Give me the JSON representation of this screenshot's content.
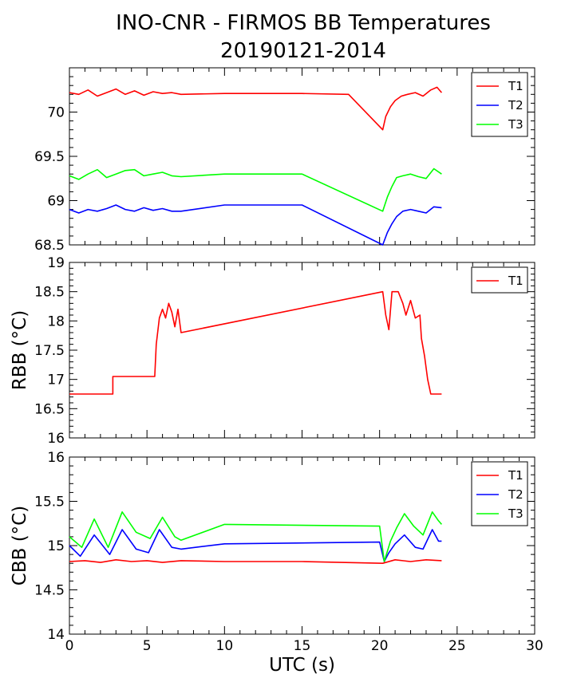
{
  "title": {
    "line1": "INO-CNR - FIRMOS BB Temperatures",
    "line2": "20190121-2014"
  },
  "colors": {
    "T1": "#ff0000",
    "T2": "#0000ff",
    "T3": "#00ff00",
    "axes": "#000000"
  },
  "chart_data": [
    {
      "type": "line",
      "panel": "top",
      "ylabel": "",
      "xlim": [
        0,
        30
      ],
      "ylim": [
        68.5,
        70.5
      ],
      "xticks": [
        0,
        5,
        10,
        15,
        20,
        25,
        30
      ],
      "yticks": [
        68.5,
        69,
        69.5,
        70
      ],
      "ytick_labels": [
        "68.5",
        "69",
        "69.5",
        "70"
      ],
      "show_xtick_labels": false,
      "legend": {
        "placement": "top-right",
        "entries": [
          "T1",
          "T2",
          "T3"
        ]
      },
      "series": [
        {
          "name": "T1",
          "x": [
            0,
            0.6,
            1.2,
            1.8,
            2.4,
            3,
            3.6,
            4.2,
            4.8,
            5.4,
            6,
            6.6,
            7.2,
            10,
            15,
            18,
            20.2,
            20.4,
            20.7,
            21,
            21.4,
            21.8,
            22.3,
            22.8,
            23.3,
            23.7,
            24
          ],
          "values": [
            70.22,
            70.2,
            70.25,
            70.18,
            70.22,
            70.26,
            70.2,
            70.24,
            70.19,
            70.23,
            70.21,
            70.22,
            70.2,
            70.21,
            70.21,
            70.2,
            69.8,
            69.95,
            70.06,
            70.13,
            70.18,
            70.2,
            70.22,
            70.18,
            70.25,
            70.28,
            70.22
          ]
        },
        {
          "name": "T2",
          "x": [
            0,
            0.6,
            1.2,
            1.8,
            2.4,
            3,
            3.6,
            4.2,
            4.8,
            5.4,
            6,
            6.6,
            7.2,
            10,
            15,
            20.2,
            20.5,
            20.8,
            21.1,
            21.5,
            22,
            22.5,
            23,
            23.5,
            24
          ],
          "values": [
            68.9,
            68.86,
            68.9,
            68.88,
            68.91,
            68.95,
            68.9,
            68.88,
            68.92,
            68.89,
            68.91,
            68.88,
            68.88,
            68.95,
            68.95,
            68.5,
            68.64,
            68.74,
            68.82,
            68.88,
            68.9,
            68.88,
            68.86,
            68.93,
            68.92
          ]
        },
        {
          "name": "T3",
          "x": [
            0,
            0.6,
            1.2,
            1.8,
            2.4,
            3,
            3.6,
            4.2,
            4.8,
            5.4,
            6,
            6.6,
            7.2,
            10,
            15,
            20.2,
            20.5,
            20.8,
            21.1,
            21.5,
            22,
            22.5,
            23,
            23.5,
            24
          ],
          "values": [
            69.28,
            69.24,
            69.3,
            69.35,
            69.26,
            69.3,
            69.34,
            69.35,
            69.28,
            69.3,
            69.32,
            69.28,
            69.27,
            69.3,
            69.3,
            68.88,
            69.04,
            69.16,
            69.26,
            69.28,
            69.3,
            69.27,
            69.25,
            69.36,
            69.3
          ]
        }
      ]
    },
    {
      "type": "line",
      "panel": "middle",
      "ylabel": "RBB (°C)",
      "xlim": [
        0,
        30
      ],
      "ylim": [
        16,
        19
      ],
      "xticks": [
        0,
        5,
        10,
        15,
        20,
        25,
        30
      ],
      "yticks": [
        16,
        16.5,
        17,
        17.5,
        18,
        18.5,
        19
      ],
      "ytick_labels": [
        "16",
        "16.5",
        "17",
        "17.5",
        "18",
        "18.5",
        "19"
      ],
      "show_xtick_labels": false,
      "legend": {
        "placement": "top-right",
        "entries": [
          "T1"
        ]
      },
      "series": [
        {
          "name": "T1",
          "x": [
            0,
            2.8,
            2.8,
            5.5,
            5.6,
            5.8,
            6.0,
            6.2,
            6.4,
            6.6,
            6.8,
            7.0,
            7.2,
            20.2,
            20.4,
            20.6,
            20.8,
            21.2,
            21.5,
            21.7,
            22.0,
            22.3,
            22.6,
            22.7,
            22.9,
            23.1,
            23.3,
            24
          ],
          "values": [
            16.75,
            16.75,
            17.05,
            17.05,
            17.6,
            18.05,
            18.2,
            18.05,
            18.3,
            18.15,
            17.9,
            18.2,
            17.8,
            18.5,
            18.1,
            17.85,
            18.5,
            18.5,
            18.3,
            18.1,
            18.35,
            18.05,
            18.1,
            17.7,
            17.4,
            17.0,
            16.75,
            16.75
          ]
        }
      ]
    },
    {
      "type": "line",
      "panel": "bottom",
      "ylabel": "CBB (°C)",
      "xlabel": "UTC (s)",
      "xlim": [
        0,
        30
      ],
      "ylim": [
        14,
        16
      ],
      "xticks": [
        0,
        5,
        10,
        15,
        20,
        25,
        30
      ],
      "xtick_labels": [
        "0",
        "5",
        "10",
        "15",
        "20",
        "25",
        "30"
      ],
      "yticks": [
        14,
        14.5,
        15,
        15.5,
        16
      ],
      "ytick_labels": [
        "14",
        "14.5",
        "15",
        "15.5",
        "16"
      ],
      "show_xtick_labels": true,
      "legend": {
        "placement": "top-right",
        "entries": [
          "T1",
          "T2",
          "T3"
        ]
      },
      "series": [
        {
          "name": "T1",
          "x": [
            0,
            1,
            2,
            3,
            4,
            5,
            6,
            7.2,
            10,
            15,
            20.2,
            21,
            22,
            23,
            24
          ],
          "values": [
            14.82,
            14.83,
            14.81,
            14.84,
            14.82,
            14.83,
            14.81,
            14.83,
            14.82,
            14.82,
            14.8,
            14.84,
            14.82,
            14.84,
            14.83
          ]
        },
        {
          "name": "T2",
          "x": [
            0,
            0.7,
            1.6,
            2.6,
            3.4,
            4.3,
            5.1,
            5.8,
            6.6,
            7.2,
            10,
            20,
            20.3,
            20.6,
            21,
            21.6,
            22.3,
            22.8,
            23.4,
            23.8,
            24
          ],
          "values": [
            15.0,
            14.88,
            15.12,
            14.9,
            15.18,
            14.96,
            14.92,
            15.18,
            14.98,
            14.96,
            15.02,
            15.04,
            14.82,
            14.92,
            15.02,
            15.12,
            14.98,
            14.96,
            15.18,
            15.05,
            15.05
          ]
        },
        {
          "name": "T3",
          "x": [
            0,
            0.8,
            1.6,
            2.5,
            3.4,
            4.3,
            5.2,
            6.0,
            6.8,
            7.2,
            10,
            20,
            20.3,
            20.7,
            21.1,
            21.6,
            22.2,
            22.8,
            23.4,
            23.8,
            24
          ],
          "values": [
            15.1,
            14.98,
            15.3,
            14.98,
            15.38,
            15.15,
            15.08,
            15.32,
            15.1,
            15.06,
            15.24,
            15.22,
            14.82,
            15.05,
            15.2,
            15.36,
            15.22,
            15.12,
            15.38,
            15.28,
            15.24
          ]
        }
      ]
    }
  ]
}
